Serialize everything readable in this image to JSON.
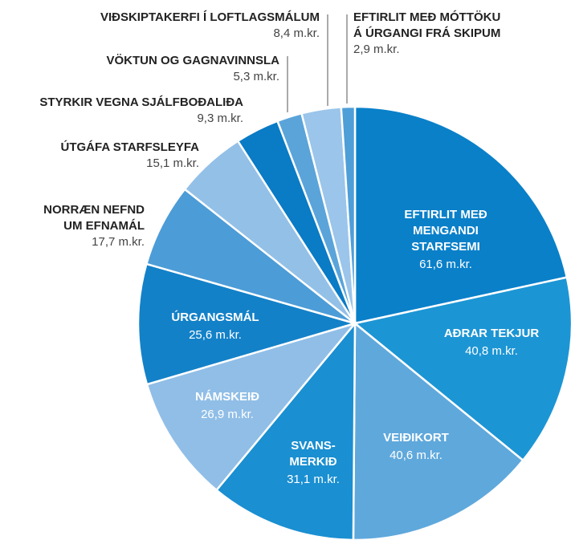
{
  "chart_data": {
    "type": "pie",
    "categories": [
      "EFTIRLIT MEÐ\nMENGANDI\nSTARFSEMI",
      "AÐRAR TEKJUR",
      "VEIÐIKORT",
      "SVANS-\nMERKIÐ",
      "NÁMSKEIÐ",
      "ÚRGANGSMÁL",
      "NORRÆN NEFND\nUM EFNAMÁL",
      "ÚTGÁFA STARFSLEYFA",
      "STYRKIR VEGNA SJÁLFBOÐALIÐA",
      "VÖKTUN OG GAGNAVINNSLA",
      "VIÐSKIPTAKERFI Í LOFTLAGSMÁLUM",
      "EFTIRLIT MEÐ MÓTTÖKU\nÁ ÚRGANGI FRÁ SKIPUM"
    ],
    "values": [
      61.6,
      40.8,
      40.6,
      31.1,
      26.9,
      25.6,
      17.7,
      15.1,
      9.3,
      5.3,
      8.4,
      2.9
    ],
    "value_labels": [
      "61,6 m.kr.",
      "40,8 m.kr.",
      "40,6 m.kr.",
      "31,1 m.kr.",
      "26,9 m.kr.",
      "25,6 m.kr.",
      "17,7 m.kr.",
      "15,1 m.kr.",
      "9,3 m.kr.",
      "5,3 m.kr.",
      "8,4 m.kr.",
      "2,9 m.kr."
    ],
    "colors": [
      "#0a80c9",
      "#1c95d4",
      "#5fa8dc",
      "#1a8fd1",
      "#90bee7",
      "#1381c8",
      "#4c9cd7",
      "#93c0e7",
      "#0a7bc5",
      "#5aa4da",
      "#9bc5ea",
      "#4e9ed8"
    ]
  }
}
